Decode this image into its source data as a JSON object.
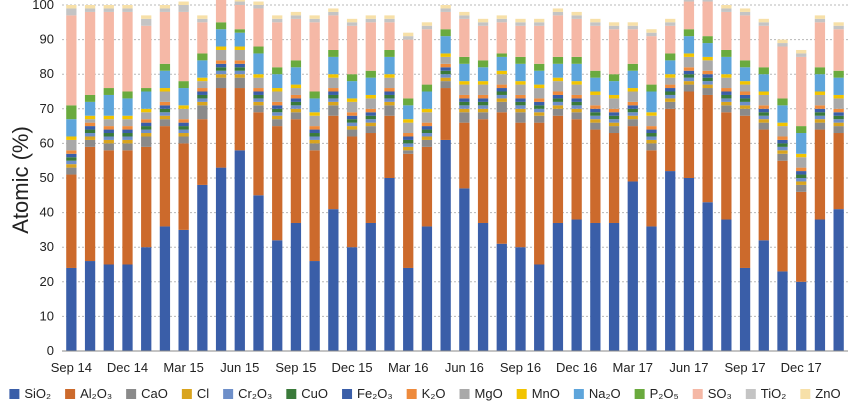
{
  "chart_data": {
    "type": "bar",
    "stacked": true,
    "title": "",
    "xlabel": "",
    "ylabel": "Atomic (%)",
    "ylim": [
      0,
      100
    ],
    "yticks": [
      0,
      10,
      20,
      30,
      40,
      50,
      60,
      70,
      80,
      90,
      100
    ],
    "grid": "horizontal-dashed",
    "legend": "bottom",
    "xtick_labels": [
      "Sep 14",
      "Dec 14",
      "Mar 15",
      "Jun 15",
      "Sep 15",
      "Dec 15",
      "Mar 16",
      "Jun 16",
      "Sep 16",
      "Dec 16",
      "Mar 17",
      "Jun 17",
      "Sep 17",
      "Dec 17"
    ],
    "series": [
      {
        "name": "SiO₂",
        "color": "#3a5ea8",
        "values": [
          24,
          26,
          25,
          25,
          30,
          36,
          35,
          48,
          53,
          58,
          45,
          32,
          37,
          26,
          41,
          30,
          37,
          50,
          24,
          36,
          61,
          47,
          37,
          31,
          30,
          25,
          37,
          38,
          37,
          37,
          49,
          36,
          52,
          50,
          43,
          38,
          24,
          32,
          23,
          20,
          38,
          41
        ]
      },
      {
        "name": "Al₂O₃",
        "color": "#cc6a2c",
        "values": [
          27,
          33,
          33,
          33,
          29,
          29,
          25,
          19,
          23,
          18,
          24,
          33,
          30,
          32,
          27,
          32,
          26,
          18,
          33,
          23,
          15,
          19,
          30,
          38,
          36,
          41,
          31,
          29,
          27,
          26,
          16,
          22,
          18,
          25,
          31,
          31,
          44,
          32,
          32,
          26,
          26,
          22
        ]
      },
      {
        "name": "CaO",
        "color": "#8a8a8a",
        "values": [
          2,
          2,
          2,
          2,
          3,
          2,
          2,
          4,
          3,
          3,
          2,
          2,
          2,
          2,
          3,
          2,
          2,
          3,
          1,
          2,
          2,
          3,
          2,
          3,
          3,
          2,
          2,
          2,
          2,
          2,
          2,
          2,
          2,
          2,
          2,
          2,
          2,
          2,
          2,
          2,
          2,
          2
        ]
      },
      {
        "name": "Cl",
        "color": "#d9a41e",
        "values": [
          1,
          1,
          1,
          1,
          1,
          1,
          1,
          1,
          1,
          1,
          1,
          1,
          1,
          1,
          1,
          1,
          1,
          1,
          1,
          1,
          1,
          1,
          1,
          1,
          1,
          1,
          1,
          1,
          1,
          1,
          1,
          1,
          1,
          1,
          1,
          1,
          1,
          1,
          1,
          1,
          1,
          1
        ]
      },
      {
        "name": "Cr₂O₃",
        "color": "#6e8fc9",
        "values": [
          1,
          1,
          1,
          1,
          1,
          1,
          1,
          1,
          1,
          1,
          1,
          1,
          1,
          1,
          1,
          1,
          1,
          1,
          1,
          1,
          1,
          1,
          1,
          1,
          1,
          1,
          1,
          1,
          1,
          1,
          1,
          1,
          1,
          1,
          1,
          1,
          1,
          1,
          1,
          1,
          1,
          1
        ]
      },
      {
        "name": "CuO",
        "color": "#3a7a3a",
        "values": [
          1,
          1,
          1,
          1,
          1,
          1,
          1,
          1,
          1,
          1,
          1,
          1,
          1,
          1,
          1,
          1,
          1,
          1,
          1,
          1,
          1,
          1,
          1,
          1,
          1,
          1,
          1,
          1,
          1,
          1,
          1,
          1,
          1,
          1,
          1,
          1,
          1,
          1,
          1,
          1,
          1,
          1
        ]
      },
      {
        "name": "Fe₂O₃",
        "color": "#3a5ea8",
        "values": [
          1,
          1,
          1,
          1,
          1,
          1,
          1,
          1,
          1,
          1,
          1,
          1,
          1,
          1,
          1,
          1,
          1,
          1,
          1,
          1,
          1,
          1,
          1,
          1,
          1,
          1,
          1,
          1,
          1,
          1,
          1,
          1,
          1,
          1,
          1,
          1,
          1,
          1,
          1,
          1,
          1,
          1
        ]
      },
      {
        "name": "K₂O",
        "color": "#ee8a3c",
        "values": [
          1,
          1,
          1,
          1,
          1,
          1,
          1,
          1,
          1,
          1,
          1,
          1,
          1,
          1,
          1,
          1,
          1,
          1,
          1,
          1,
          1,
          1,
          1,
          1,
          1,
          1,
          1,
          1,
          1,
          1,
          1,
          1,
          1,
          1,
          1,
          1,
          1,
          1,
          1,
          1,
          1,
          1
        ]
      },
      {
        "name": "MgO",
        "color": "#a9a9a9",
        "values": [
          3,
          1,
          2,
          2,
          2,
          3,
          3,
          2,
          3,
          3,
          3,
          3,
          2,
          3,
          3,
          3,
          3,
          3,
          3,
          3,
          2,
          3,
          3,
          3,
          3,
          3,
          3,
          3,
          3,
          3,
          3,
          3,
          2,
          3,
          3,
          3,
          2,
          3,
          3,
          3,
          3,
          3
        ]
      },
      {
        "name": "MnO",
        "color": "#f2c400",
        "values": [
          1,
          1,
          1,
          1,
          1,
          1,
          1,
          1,
          1,
          1,
          1,
          1,
          1,
          1,
          1,
          1,
          1,
          1,
          1,
          1,
          1,
          1,
          1,
          1,
          1,
          1,
          1,
          1,
          1,
          1,
          1,
          1,
          1,
          1,
          1,
          1,
          1,
          1,
          1,
          1,
          1,
          1
        ]
      },
      {
        "name": "Na₂O",
        "color": "#5ea5db",
        "values": [
          5,
          4,
          6,
          5,
          5,
          5,
          5,
          5,
          5,
          4,
          6,
          4,
          5,
          4,
          5,
          5,
          5,
          5,
          4,
          5,
          5,
          5,
          4,
          4,
          5,
          4,
          4,
          5,
          4,
          4,
          5,
          6,
          4,
          5,
          4,
          5,
          4,
          5,
          5,
          6,
          5,
          5
        ]
      },
      {
        "name": "P₂O₅",
        "color": "#6aaa3e",
        "values": [
          4,
          2,
          2,
          2,
          1,
          2,
          2,
          2,
          2,
          1,
          2,
          2,
          2,
          2,
          2,
          2,
          2,
          2,
          2,
          2,
          2,
          2,
          2,
          1,
          2,
          2,
          2,
          2,
          2,
          2,
          2,
          2,
          2,
          2,
          2,
          2,
          2,
          2,
          2,
          2,
          2,
          2
        ]
      },
      {
        "name": "SO₃",
        "color": "#f5b8a6",
        "values": [
          26,
          24,
          22,
          23,
          18,
          15,
          20,
          9,
          8,
          7,
          11,
          13,
          12,
          20,
          10,
          14,
          14,
          8,
          17,
          16,
          5,
          11,
          10,
          9,
          9,
          11,
          12,
          11,
          13,
          13,
          10,
          14,
          8,
          8,
          10,
          11,
          13,
          12,
          15,
          20,
          13,
          12
        ]
      },
      {
        "name": "TiO₂",
        "color": "#c4c4c4",
        "values": [
          2,
          1,
          1,
          1,
          2,
          1,
          2,
          1,
          1,
          1,
          1,
          1,
          1,
          1,
          1,
          1,
          1,
          1,
          1,
          1,
          1,
          1,
          1,
          1,
          1,
          1,
          1,
          1,
          1,
          1,
          1,
          1,
          1,
          1,
          1,
          1,
          1,
          1,
          1,
          1,
          1,
          1
        ]
      },
      {
        "name": "ZnO",
        "color": "#f7e0a8",
        "values": [
          1,
          1,
          1,
          1,
          1,
          1,
          1,
          1,
          1,
          1,
          1,
          1,
          1,
          1,
          1,
          1,
          1,
          1,
          1,
          1,
          1,
          1,
          1,
          1,
          1,
          1,
          1,
          1,
          1,
          1,
          1,
          1,
          1,
          1,
          1,
          1,
          1,
          1,
          1,
          1,
          1,
          1
        ]
      }
    ]
  }
}
